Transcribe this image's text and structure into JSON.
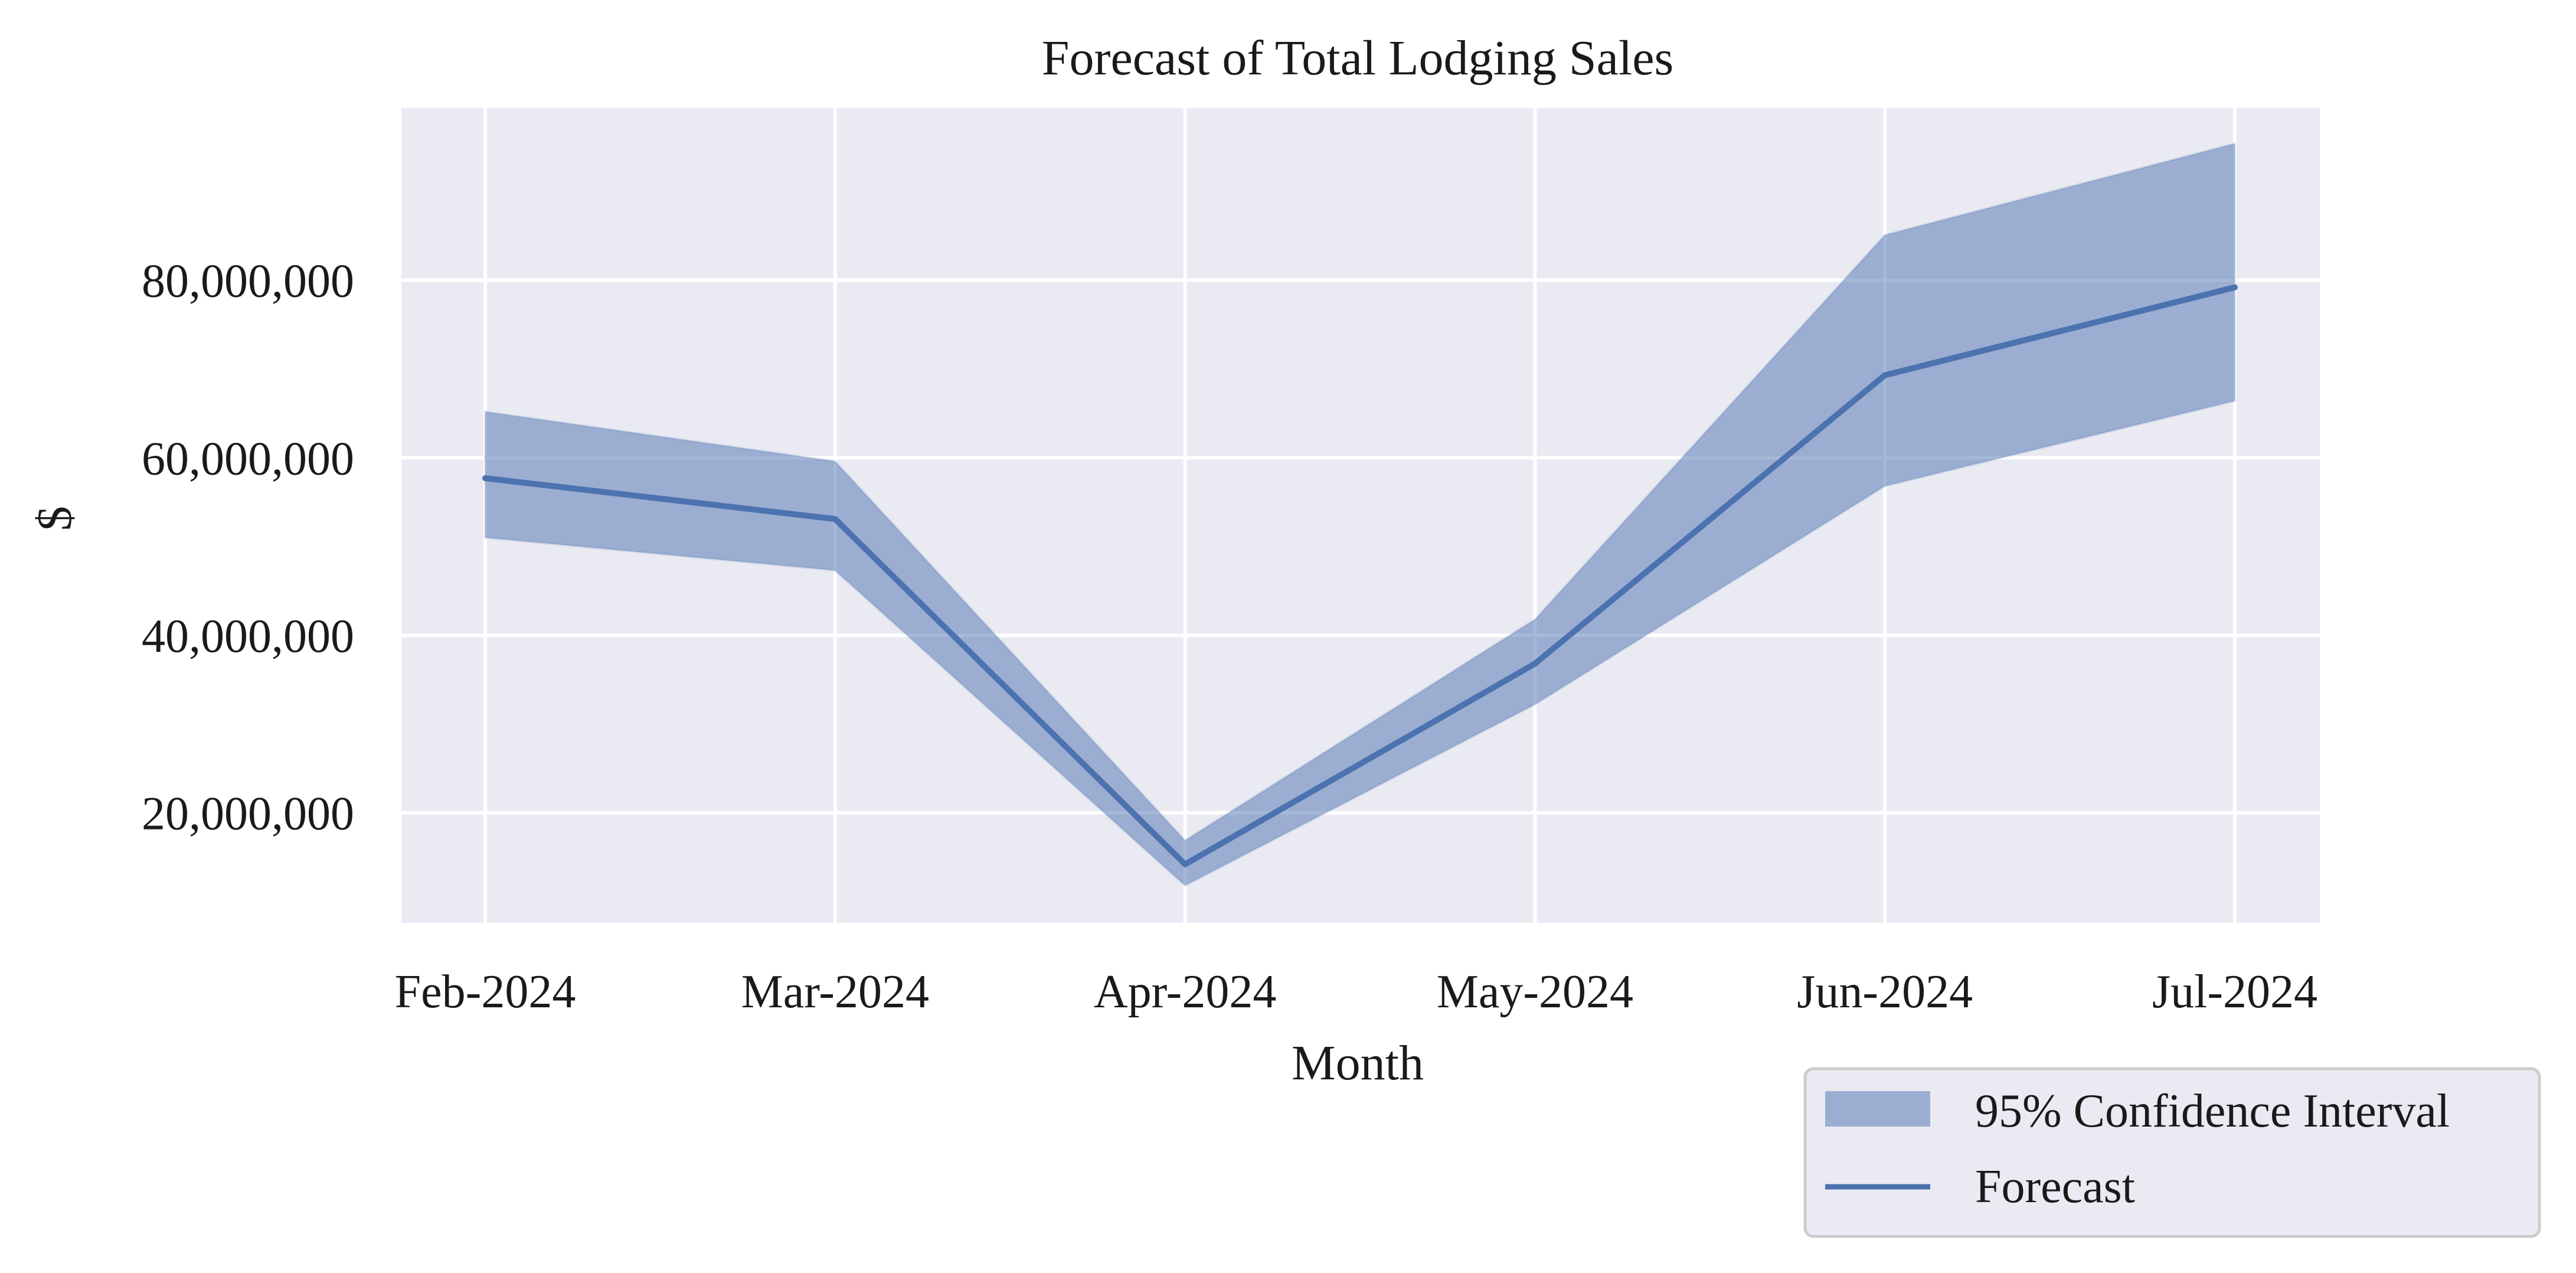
{
  "chart_data": {
    "type": "line",
    "title": "Forecast of Total Lodging Sales",
    "xlabel": "Month",
    "ylabel": "$",
    "categories": [
      "Feb-2024",
      "Mar-2024",
      "Apr-2024",
      "May-2024",
      "Jun-2024",
      "Jul-2024"
    ],
    "series": [
      {
        "name": "Forecast",
        "values": [
          57700000,
          53100000,
          14200000,
          36800000,
          69300000,
          79200000
        ]
      }
    ],
    "confidence_interval": {
      "name": "95% Confidence Interval",
      "lower": [
        51000000,
        47300000,
        11800000,
        32200000,
        56800000,
        66400000
      ],
      "upper": [
        65200000,
        59600000,
        16900000,
        41800000,
        85100000,
        95400000
      ]
    },
    "yticks": [
      20000000,
      40000000,
      60000000,
      80000000
    ],
    "ytick_labels": [
      "20,000,000",
      "40,000,000",
      "60,000,000",
      "80,000,000"
    ],
    "ylim": [
      7600000,
      99400000
    ],
    "grid": true,
    "legend_position": "bottom-right, outside",
    "colors": {
      "line": "#4c72b0",
      "band": "#4c72b0",
      "background": "#eaeaf2"
    }
  }
}
